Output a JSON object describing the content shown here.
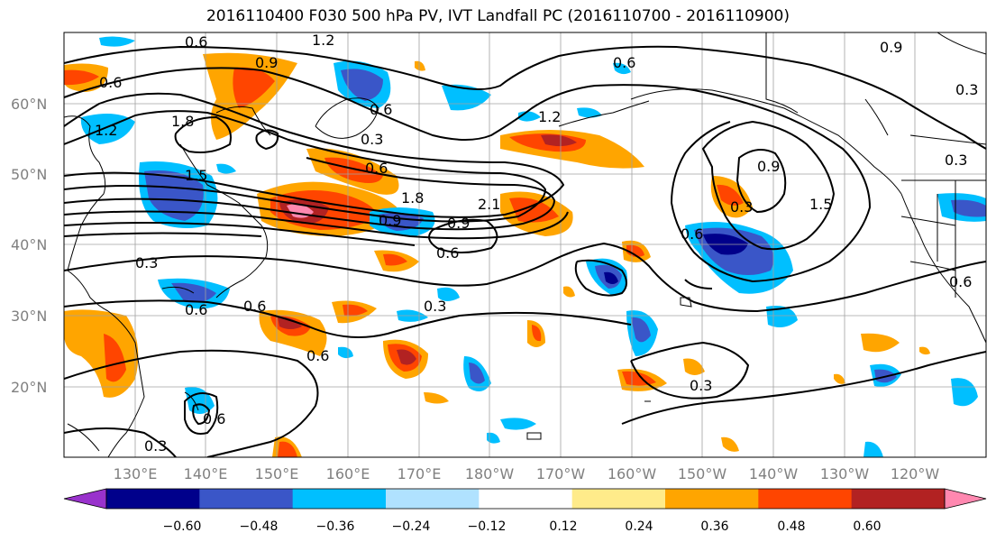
{
  "title": "2016110400 F030 500 hPa PV, IVT Landfall PC (2016110700 - 2016110900)",
  "lat_labels": [
    "60°N",
    "50°N",
    "40°N",
    "30°N",
    "20°N"
  ],
  "lon_labels": [
    "130°E",
    "140°E",
    "150°E",
    "160°E",
    "170°E",
    "180°W",
    "170°W",
    "160°W",
    "150°W",
    "140°W",
    "130°W",
    "120°W"
  ],
  "colorbar": {
    "ticks": [
      "−0.60",
      "−0.48",
      "−0.36",
      "−0.24",
      "−0.12",
      "0.12",
      "0.24",
      "0.36",
      "0.48",
      "0.60"
    ],
    "colors": [
      "#9932cc",
      "#00008b",
      "#3a56c8",
      "#00bfff",
      "#b0e2ff",
      "#ffffff",
      "#ffeb8a",
      "#ffa500",
      "#ff4500",
      "#b22222",
      "#ff88b0"
    ]
  },
  "contour_labels": [
    "0.6",
    "1.2",
    "0.9",
    "0.6",
    "1.2",
    "1.8",
    "0.3",
    "0.6",
    "1.8",
    "2.1",
    "0.9",
    "1.5",
    "0.6",
    "0.9",
    "1.5",
    "0.6",
    "0.9",
    "1.2",
    "0.3",
    "0.3",
    "0.6",
    "0.6",
    "0.6",
    "0.3",
    "0.6",
    "0.3",
    "0.6",
    "0.3",
    "0.3",
    "0.9",
    "0.3",
    "0.6",
    "0.6"
  ]
}
